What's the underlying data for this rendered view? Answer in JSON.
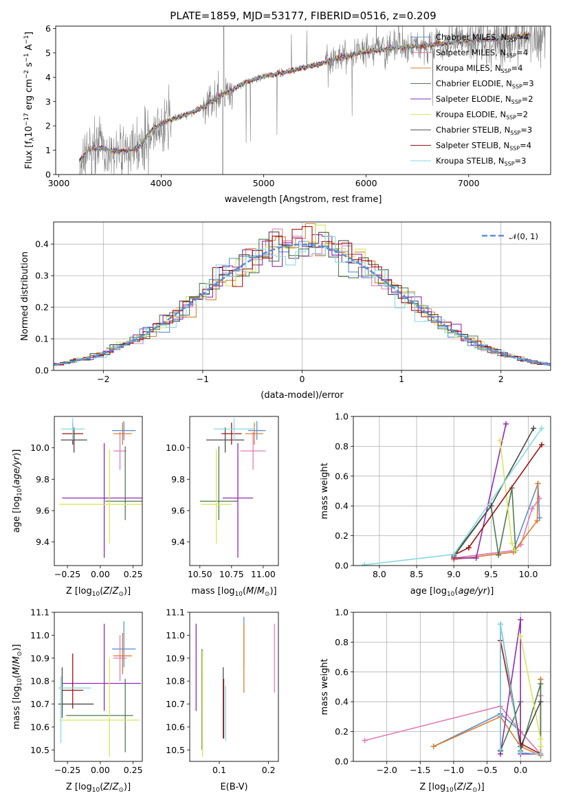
{
  "colors": {
    "Chabrier MILES": "#5b8fd6",
    "Salpeter MILES": "#e27bb6",
    "Kroupa MILES": "#e07b2a",
    "Chabrier ELODIE": "#4f7a4f",
    "Salpeter ELODIE": "#8e2bb0",
    "Kroupa ELODIE": "#d7e65a",
    "Chabrier STELIB": "#4a4a4a",
    "Salpeter STELIB": "#a01010",
    "Kroupa STELIB": "#84d9e3",
    "data": "#7f7f7f",
    "normal": "#5b8fd6"
  },
  "chart_data": [
    {
      "id": "spectrum",
      "type": "line",
      "title": "PLATE=1859, MJD=53177, FIBERID=0516, z=0.209",
      "xlabel": "wavelength [Angstrom, rest frame]",
      "ylabel": "Flux [f_λ10^-17 erg cm^-2 s^-1 A^-1]",
      "xlim": [
        2970,
        7800
      ],
      "ylim": [
        0,
        6.1
      ],
      "xticks": [
        3000,
        4000,
        5000,
        6000,
        7000
      ],
      "yticks": [
        0,
        1,
        2,
        3,
        4,
        5,
        6
      ],
      "continuum": [
        [
          3200,
          0.55
        ],
        [
          3300,
          1.05
        ],
        [
          3400,
          1.1
        ],
        [
          3500,
          1.0
        ],
        [
          3600,
          0.95
        ],
        [
          3700,
          1.0
        ],
        [
          3800,
          1.2
        ],
        [
          3900,
          1.8
        ],
        [
          4000,
          2.1
        ],
        [
          4100,
          2.25
        ],
        [
          4200,
          2.4
        ],
        [
          4300,
          2.55
        ],
        [
          4400,
          2.75
        ],
        [
          4500,
          3.0
        ],
        [
          4600,
          3.3
        ],
        [
          4700,
          3.5
        ],
        [
          4800,
          3.75
        ],
        [
          4900,
          3.9
        ],
        [
          5000,
          4.05
        ],
        [
          5100,
          4.1
        ],
        [
          5200,
          4.2
        ],
        [
          5300,
          4.3
        ],
        [
          5400,
          4.4
        ],
        [
          5500,
          4.5
        ],
        [
          5600,
          4.6
        ],
        [
          5700,
          4.75
        ],
        [
          5800,
          4.85
        ],
        [
          5900,
          4.95
        ],
        [
          6000,
          5.05
        ],
        [
          6200,
          5.15
        ],
        [
          6400,
          5.25
        ],
        [
          6600,
          5.3
        ],
        [
          6800,
          5.4
        ],
        [
          7000,
          5.5
        ],
        [
          7200,
          5.55
        ],
        [
          7400,
          5.65
        ],
        [
          7600,
          5.7
        ]
      ],
      "legend": [
        {
          "name": "Chabrier MILES",
          "n": "4"
        },
        {
          "name": "Salpeter MILES",
          "n": "4"
        },
        {
          "name": "Kroupa MILES",
          "n": "4"
        },
        {
          "name": "Chabrier ELODIE",
          "n": "3"
        },
        {
          "name": "Salpeter ELODIE",
          "n": "2"
        },
        {
          "name": "Kroupa ELODIE",
          "n": "2"
        },
        {
          "name": "Chabrier STELIB",
          "n": "3"
        },
        {
          "name": "Salpeter STELIB",
          "n": "4"
        },
        {
          "name": "Kroupa STELIB",
          "n": "3"
        }
      ],
      "legend_placement": "top-right"
    },
    {
      "id": "residuals",
      "type": "line",
      "xlabel": "(data-model)/error",
      "ylabel": "Normed distribution",
      "xlim": [
        -2.5,
        2.5
      ],
      "ylim": [
        0,
        0.47
      ],
      "xticks": [
        -2,
        -1,
        0,
        1,
        2
      ],
      "yticks": [
        0.0,
        0.1,
        0.2,
        0.3,
        0.4
      ],
      "bin_width": 0.1,
      "normal_label": "𝒩(0, 1)",
      "grid": true,
      "legend_placement": "top-right"
    },
    {
      "id": "age-vs-Z",
      "type": "scatter",
      "xlabel": "Z [log10(Z/Z⊙)]",
      "ylabel": "age [log10(age/yr)]",
      "xlim": [
        -0.35,
        0.32
      ],
      "ylim": [
        9.25,
        10.2
      ],
      "xticks": [
        -0.25,
        0.0,
        0.25
      ],
      "yticks": [
        9.4,
        9.6,
        9.8,
        10.0
      ],
      "points": [
        {
          "model": "Chabrier MILES",
          "x": 0.18,
          "y": 10.11,
          "xe": [
            0.09,
            0.09
          ],
          "ye": [
            0.06,
            0.06
          ]
        },
        {
          "model": "Salpeter MILES",
          "x": 0.15,
          "y": 9.98,
          "xe": [
            0.05,
            0.05
          ],
          "ye": [
            0.12,
            0.12
          ]
        },
        {
          "model": "Kroupa MILES",
          "x": 0.17,
          "y": 10.09,
          "xe": [
            0.07,
            0.07
          ],
          "ye": [
            0.07,
            0.07
          ]
        },
        {
          "model": "Chabrier ELODIE",
          "x": 0.19,
          "y": 9.66,
          "xe": [
            0.15,
            0.15
          ],
          "ye": [
            0.12,
            0.35
          ]
        },
        {
          "model": "Salpeter ELODIE",
          "x": 0.03,
          "y": 9.68,
          "xe": [
            0.32,
            0.32
          ],
          "ye": [
            0.38,
            0.35
          ]
        },
        {
          "model": "Kroupa ELODIE",
          "x": 0.07,
          "y": 9.64,
          "xe": [
            0.38,
            0.38
          ],
          "ye": [
            0.25,
            0.35
          ]
        },
        {
          "model": "Chabrier STELIB",
          "x": -0.2,
          "y": 10.05,
          "xe": [
            0.1,
            0.1
          ],
          "ye": [
            0.08,
            0.08
          ]
        },
        {
          "model": "Salpeter STELIB",
          "x": -0.21,
          "y": 10.09,
          "xe": [
            0.08,
            0.08
          ],
          "ye": [
            0.07,
            0.07
          ]
        },
        {
          "model": "Kroupa STELIB",
          "x": -0.21,
          "y": 10.12,
          "xe": [
            0.09,
            0.09
          ],
          "ye": [
            0.07,
            0.07
          ]
        }
      ]
    },
    {
      "id": "age-vs-mass",
      "type": "scatter",
      "xlabel": "mass [log10(M/M⊙)]",
      "ylabel": "",
      "xlim": [
        10.42,
        11.12
      ],
      "ylim": [
        9.25,
        10.2
      ],
      "xticks": [
        10.5,
        10.75,
        11.0
      ],
      "yticks": [
        9.4,
        9.6,
        9.8,
        10.0
      ],
      "points": [
        {
          "model": "Chabrier MILES",
          "x": 10.95,
          "y": 10.11,
          "xe": [
            0.07,
            0.07
          ],
          "ye": [
            0.06,
            0.06
          ]
        },
        {
          "model": "Salpeter MILES",
          "x": 10.92,
          "y": 9.98,
          "xe": [
            0.1,
            0.1
          ],
          "ye": [
            0.12,
            0.12
          ]
        },
        {
          "model": "Kroupa MILES",
          "x": 10.93,
          "y": 10.09,
          "xe": [
            0.07,
            0.07
          ],
          "ye": [
            0.07,
            0.07
          ]
        },
        {
          "model": "Chabrier ELODIE",
          "x": 10.65,
          "y": 9.66,
          "xe": [
            0.15,
            0.15
          ],
          "ye": [
            0.12,
            0.35
          ]
        },
        {
          "model": "Salpeter ELODIE",
          "x": 10.8,
          "y": 9.68,
          "xe": [
            0.12,
            0.12
          ],
          "ye": [
            0.38,
            0.35
          ]
        },
        {
          "model": "Kroupa ELODIE",
          "x": 10.63,
          "y": 9.64,
          "xe": [
            0.12,
            0.12
          ],
          "ye": [
            0.25,
            0.35
          ]
        },
        {
          "model": "Chabrier STELIB",
          "x": 10.7,
          "y": 10.05,
          "xe": [
            0.15,
            0.15
          ],
          "ye": [
            0.08,
            0.08
          ]
        },
        {
          "model": "Salpeter STELIB",
          "x": 10.75,
          "y": 10.09,
          "xe": [
            0.08,
            0.08
          ],
          "ye": [
            0.07,
            0.07
          ]
        },
        {
          "model": "Kroupa STELIB",
          "x": 10.77,
          "y": 10.12,
          "xe": [
            0.16,
            0.16
          ],
          "ye": [
            0.07,
            0.07
          ]
        }
      ]
    },
    {
      "id": "weight-vs-age",
      "type": "line",
      "xlabel": "age [log10(age/yr)]",
      "ylabel": "mass weight",
      "xlim": [
        7.65,
        10.3
      ],
      "ylim": [
        0,
        1
      ],
      "xticks": [
        8.0,
        8.5,
        9.0,
        9.5,
        10.0
      ],
      "yticks": [
        0.0,
        0.2,
        0.4,
        0.6,
        0.8,
        1.0
      ],
      "grid": true,
      "series": [
        {
          "model": "Chabrier MILES",
          "x": [
            9.0,
            9.8,
            10.13,
            10.15
          ],
          "y": [
            0.05,
            0.1,
            0.55,
            0.32
          ]
        },
        {
          "model": "Salpeter MILES",
          "x": [
            9.0,
            9.8,
            9.9,
            10.05,
            10.15
          ],
          "y": [
            0.05,
            0.1,
            0.14,
            0.38,
            0.45
          ]
        },
        {
          "model": "Kroupa MILES",
          "x": [
            9.0,
            9.8,
            10.12,
            10.13
          ],
          "y": [
            0.04,
            0.09,
            0.3,
            0.55
          ]
        },
        {
          "model": "Chabrier ELODIE",
          "x": [
            9.0,
            9.5,
            9.6,
            9.78,
            9.83
          ],
          "y": [
            0.06,
            0.4,
            0.07,
            0.52,
            0.1
          ]
        },
        {
          "model": "Salpeter ELODIE",
          "x": [
            9.0,
            9.3,
            9.7
          ],
          "y": [
            0.05,
            0.05,
            0.95
          ]
        },
        {
          "model": "Kroupa ELODIE",
          "x": [
            9.62,
            9.78,
            9.82
          ],
          "y": [
            0.84,
            0.15,
            0.1
          ]
        },
        {
          "model": "Chabrier STELIB",
          "x": [
            9.0,
            9.5,
            10.07
          ],
          "y": [
            0.07,
            0.4,
            0.92
          ]
        },
        {
          "model": "Salpeter STELIB",
          "x": [
            9.0,
            9.2,
            10.18
          ],
          "y": [
            0.07,
            0.12,
            0.81
          ]
        },
        {
          "model": "Kroupa STELIB",
          "x": [
            7.8,
            9.0,
            10.18
          ],
          "y": [
            0.005,
            0.075,
            0.92
          ]
        }
      ]
    },
    {
      "id": "mass-vs-Z",
      "type": "scatter",
      "xlabel": "Z [log10(Z/Z⊙)]",
      "ylabel": "mass [log10(M/M⊙)]",
      "xlim": [
        -0.35,
        0.32
      ],
      "ylim": [
        10.45,
        11.1
      ],
      "xticks": [
        -0.25,
        0.0,
        0.25
      ],
      "yticks": [
        10.5,
        10.6,
        10.7,
        10.8,
        10.9,
        11.0,
        11.1
      ],
      "points": [
        {
          "model": "Chabrier MILES",
          "x": 0.18,
          "y": 10.94,
          "xe": [
            0.09,
            0.09
          ],
          "ye": [
            0.08,
            0.12
          ]
        },
        {
          "model": "Salpeter MILES",
          "x": 0.15,
          "y": 10.9,
          "xe": [
            0.05,
            0.05
          ],
          "ye": [
            0.1,
            0.1
          ]
        },
        {
          "model": "Kroupa MILES",
          "x": 0.17,
          "y": 10.91,
          "xe": [
            0.07,
            0.07
          ],
          "ye": [
            0.08,
            0.1
          ]
        },
        {
          "model": "Chabrier ELODIE",
          "x": 0.19,
          "y": 10.65,
          "xe": [
            0.45,
            0.06
          ],
          "ye": [
            0.16,
            0.16
          ]
        },
        {
          "model": "Salpeter ELODIE",
          "x": 0.03,
          "y": 10.79,
          "xe": [
            0.32,
            0.28
          ],
          "ye": [
            0.12,
            0.26
          ]
        },
        {
          "model": "Kroupa ELODIE",
          "x": 0.07,
          "y": 10.63,
          "xe": [
            0.38,
            0.23
          ],
          "ye": [
            0.16,
            0.27
          ]
        },
        {
          "model": "Chabrier STELIB",
          "x": -0.29,
          "y": 10.7,
          "xe": [
            0.03,
            0.24
          ],
          "ye": [
            0.06,
            0.16
          ]
        },
        {
          "model": "Salpeter STELIB",
          "x": -0.21,
          "y": 10.76,
          "xe": [
            0.08,
            0.08
          ],
          "ye": [
            0.08,
            0.16
          ]
        },
        {
          "model": "Kroupa STELIB",
          "x": -0.3,
          "y": 10.77,
          "xe": [
            0.02,
            0.23
          ],
          "ye": [
            0.24,
            0.05
          ]
        }
      ]
    },
    {
      "id": "mass-vs-ebv",
      "type": "scatter",
      "xlabel": "E(B-V)",
      "ylabel": "",
      "xlim": [
        0.04,
        0.22
      ],
      "ylim": [
        10.45,
        11.1
      ],
      "xticks": [
        0.1,
        0.2
      ],
      "yticks": [
        10.5,
        10.6,
        10.7,
        10.8,
        10.9,
        11.0,
        11.1
      ],
      "points": [
        {
          "model": "Chabrier MILES",
          "x": 0.15,
          "y": 10.94,
          "xe": [
            0,
            0
          ],
          "ye": [
            0.08,
            0.14
          ]
        },
        {
          "model": "Salpeter MILES",
          "x": 0.212,
          "y": 10.9,
          "xe": [
            0,
            0
          ],
          "ye": [
            0.15,
            0.15
          ]
        },
        {
          "model": "Kroupa MILES",
          "x": 0.15,
          "y": 10.91,
          "xe": [
            0,
            0
          ],
          "ye": [
            0.16,
            0.14
          ]
        },
        {
          "model": "Chabrier ELODIE",
          "x": 0.065,
          "y": 10.7,
          "xe": [
            0,
            0
          ],
          "ye": [
            0.2,
            0.24
          ]
        },
        {
          "model": "Salpeter ELODIE",
          "x": 0.053,
          "y": 10.86,
          "xe": [
            0,
            0
          ],
          "ye": [
            0.19,
            0.19
          ]
        },
        {
          "model": "Kroupa ELODIE",
          "x": 0.066,
          "y": 10.7,
          "xe": [
            0,
            0
          ],
          "ye": [
            0.23,
            0.23
          ]
        },
        {
          "model": "Chabrier STELIB",
          "x": 0.108,
          "y": 10.7,
          "xe": [
            0,
            0
          ],
          "ye": [
            0.15,
            0.16
          ]
        },
        {
          "model": "Salpeter STELIB",
          "x": 0.109,
          "y": 10.68,
          "xe": [
            0,
            0
          ],
          "ye": [
            0.13,
            0.13
          ]
        },
        {
          "model": "Kroupa STELIB",
          "x": 0.113,
          "y": 10.66,
          "xe": [
            0,
            0
          ],
          "ye": [
            0.12,
            0.12
          ]
        }
      ]
    },
    {
      "id": "weight-vs-Z",
      "type": "line",
      "xlabel": "Z [log10(Z/Z⊙)]",
      "ylabel": "mass weight",
      "xlim": [
        -2.5,
        0.45
      ],
      "ylim": [
        0,
        1
      ],
      "xticks": [
        -2.0,
        -1.5,
        -1.0,
        -0.5,
        0.0
      ],
      "yticks": [
        0.0,
        0.2,
        0.4,
        0.6,
        0.8,
        1.0
      ],
      "grid": true,
      "series": [
        {
          "model": "Chabrier MILES",
          "x": [
            -1.3,
            -0.3,
            0.0,
            0.3,
            0.3
          ],
          "y": [
            0.1,
            0.32,
            0.2,
            0.05,
            0.55
          ]
        },
        {
          "model": "Salpeter MILES",
          "x": [
            -2.33,
            -0.3,
            0.0,
            0.3,
            0.3
          ],
          "y": [
            0.14,
            0.37,
            0.2,
            0.05,
            0.44
          ]
        },
        {
          "model": "Kroupa MILES",
          "x": [
            -1.3,
            -0.3,
            0.0,
            0.3,
            0.3
          ],
          "y": [
            0.1,
            0.3,
            0.1,
            0.04,
            0.55
          ]
        },
        {
          "model": "Chabrier ELODIE",
          "x": [
            -0.3,
            0.0,
            0.0,
            0.3,
            0.3
          ],
          "y": [
            0.07,
            0.4,
            0.07,
            0.52,
            0.1
          ]
        },
        {
          "model": "Salpeter ELODIE",
          "x": [
            -0.3,
            0.0,
            0.0,
            0.3
          ],
          "y": [
            0.05,
            0.95,
            0.05,
            0.05
          ]
        },
        {
          "model": "Kroupa ELODIE",
          "x": [
            0.0,
            0.3,
            0.3
          ],
          "y": [
            0.84,
            0.15,
            0.1
          ]
        },
        {
          "model": "Chabrier STELIB",
          "x": [
            -0.3,
            -0.3,
            0.0,
            0.3
          ],
          "y": [
            0.07,
            0.92,
            0.1,
            0.4
          ]
        },
        {
          "model": "Salpeter STELIB",
          "x": [
            -0.3,
            0.0,
            0.3
          ],
          "y": [
            0.81,
            0.12,
            0.05
          ]
        },
        {
          "model": "Kroupa STELIB",
          "x": [
            -0.3,
            -0.3,
            0.0,
            0.3
          ],
          "y": [
            0.08,
            0.92,
            0.06,
            0.05
          ]
        }
      ]
    }
  ]
}
